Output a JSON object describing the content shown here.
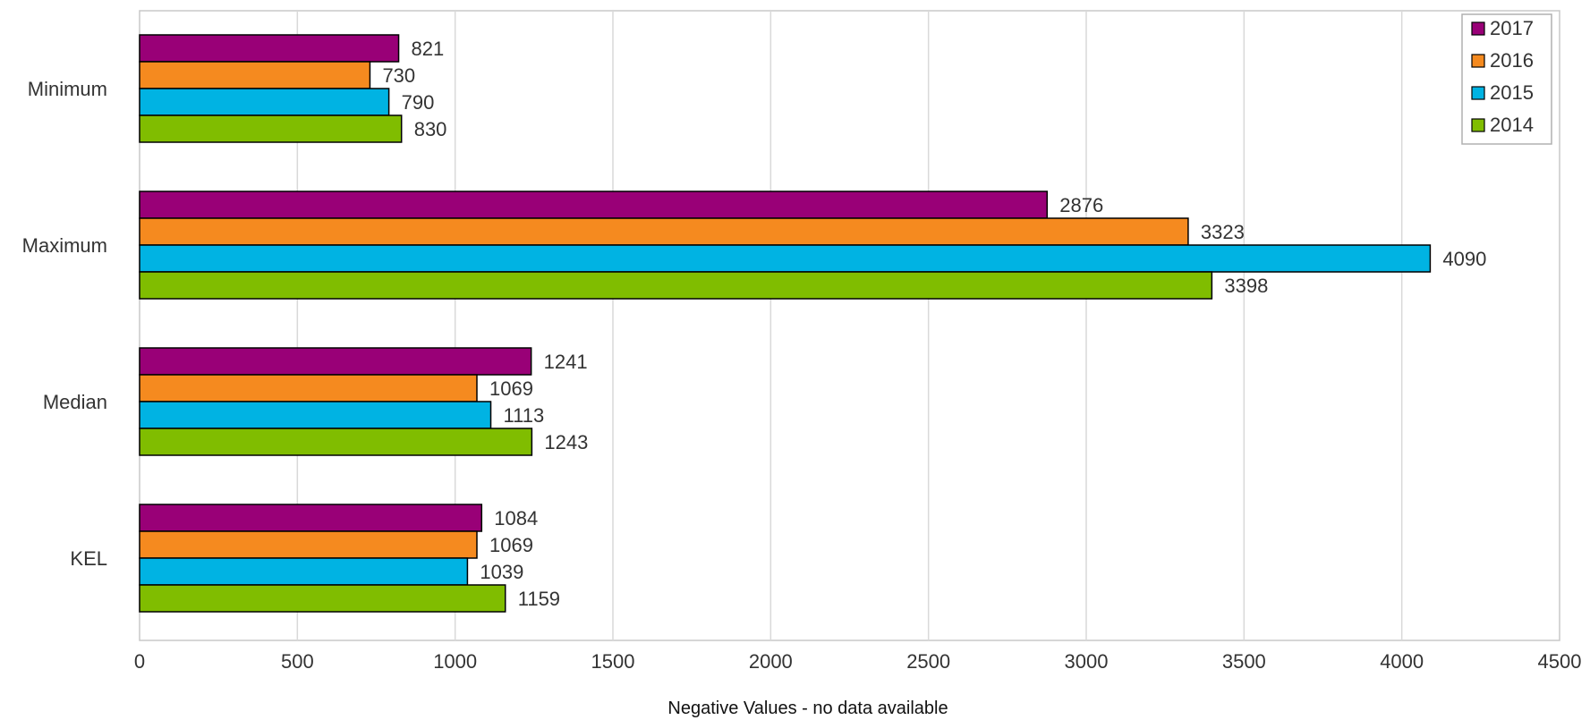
{
  "chart_data": {
    "type": "bar",
    "orientation": "horizontal",
    "categories": [
      "Minimum",
      "Maximum",
      "Median",
      "KEL"
    ],
    "series": [
      {
        "name": "2017",
        "color": "#990077",
        "values": [
          821,
          2876,
          1241,
          1084
        ]
      },
      {
        "name": "2016",
        "color": "#f58a1f",
        "values": [
          730,
          3323,
          1069,
          1069
        ]
      },
      {
        "name": "2015",
        "color": "#00b3e3",
        "values": [
          790,
          4090,
          1113,
          1039
        ]
      },
      {
        "name": "2014",
        "color": "#80bd00",
        "values": [
          830,
          3398,
          1243,
          1159
        ]
      }
    ],
    "xlim": [
      0,
      4500
    ],
    "xticks": [
      "0",
      "500",
      "1000",
      "1500",
      "2000",
      "2500",
      "3000",
      "3500",
      "4000",
      "4500"
    ],
    "xlabel": "Negative Values - no data available",
    "ylabel": "",
    "title": "",
    "grid": "vertical",
    "legend": "top-right",
    "data_labels": true
  }
}
